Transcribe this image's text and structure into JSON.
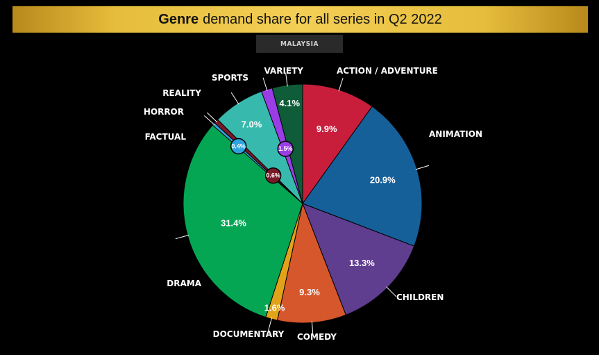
{
  "header": {
    "title_bold": "Genre",
    "title_rest": "demand share for all series in Q2 2022",
    "region": "MALAYSIA"
  },
  "colors": {
    "header_gold": "#e6bd3c",
    "background": "#000000"
  },
  "chart_data": {
    "type": "pie",
    "title": "Genre demand share for all series in Q2 2022",
    "subtitle": "MALAYSIA",
    "start_angle_deg": 0,
    "direction": "clockwise",
    "slices": [
      {
        "label": "ACTION / ADVENTURE",
        "value": 9.9,
        "display": "9.9%",
        "color": "#c81e3c"
      },
      {
        "label": "ANIMATION",
        "value": 20.9,
        "display": "20.9%",
        "color": "#16609a"
      },
      {
        "label": "CHILDREN",
        "value": 13.3,
        "display": "13.3%",
        "color": "#5f3d8f"
      },
      {
        "label": "COMEDY",
        "value": 9.3,
        "display": "9.3%",
        "color": "#d6572b"
      },
      {
        "label": "DOCUMENTARY",
        "value": 1.6,
        "display": "1.6%",
        "color": "#e2a21a"
      },
      {
        "label": "DRAMA",
        "value": 31.4,
        "display": "31.4%",
        "color": "#04a654"
      },
      {
        "label": "FACTUAL",
        "value": 0.4,
        "display": "0.4%",
        "color": "#2ea3dc"
      },
      {
        "label": "HORROR",
        "value": 0.6,
        "display": "0.6%",
        "color": "#7a1a28"
      },
      {
        "label": "REALITY",
        "value": 7.0,
        "display": "7.0%",
        "color": "#38b9ad"
      },
      {
        "label": "SPORTS",
        "value": 1.5,
        "display": "1.5%",
        "color": "#9a3de6"
      },
      {
        "label": "VARIETY",
        "value": 4.1,
        "display": "4.1%",
        "color": "#0e5c38"
      }
    ]
  }
}
